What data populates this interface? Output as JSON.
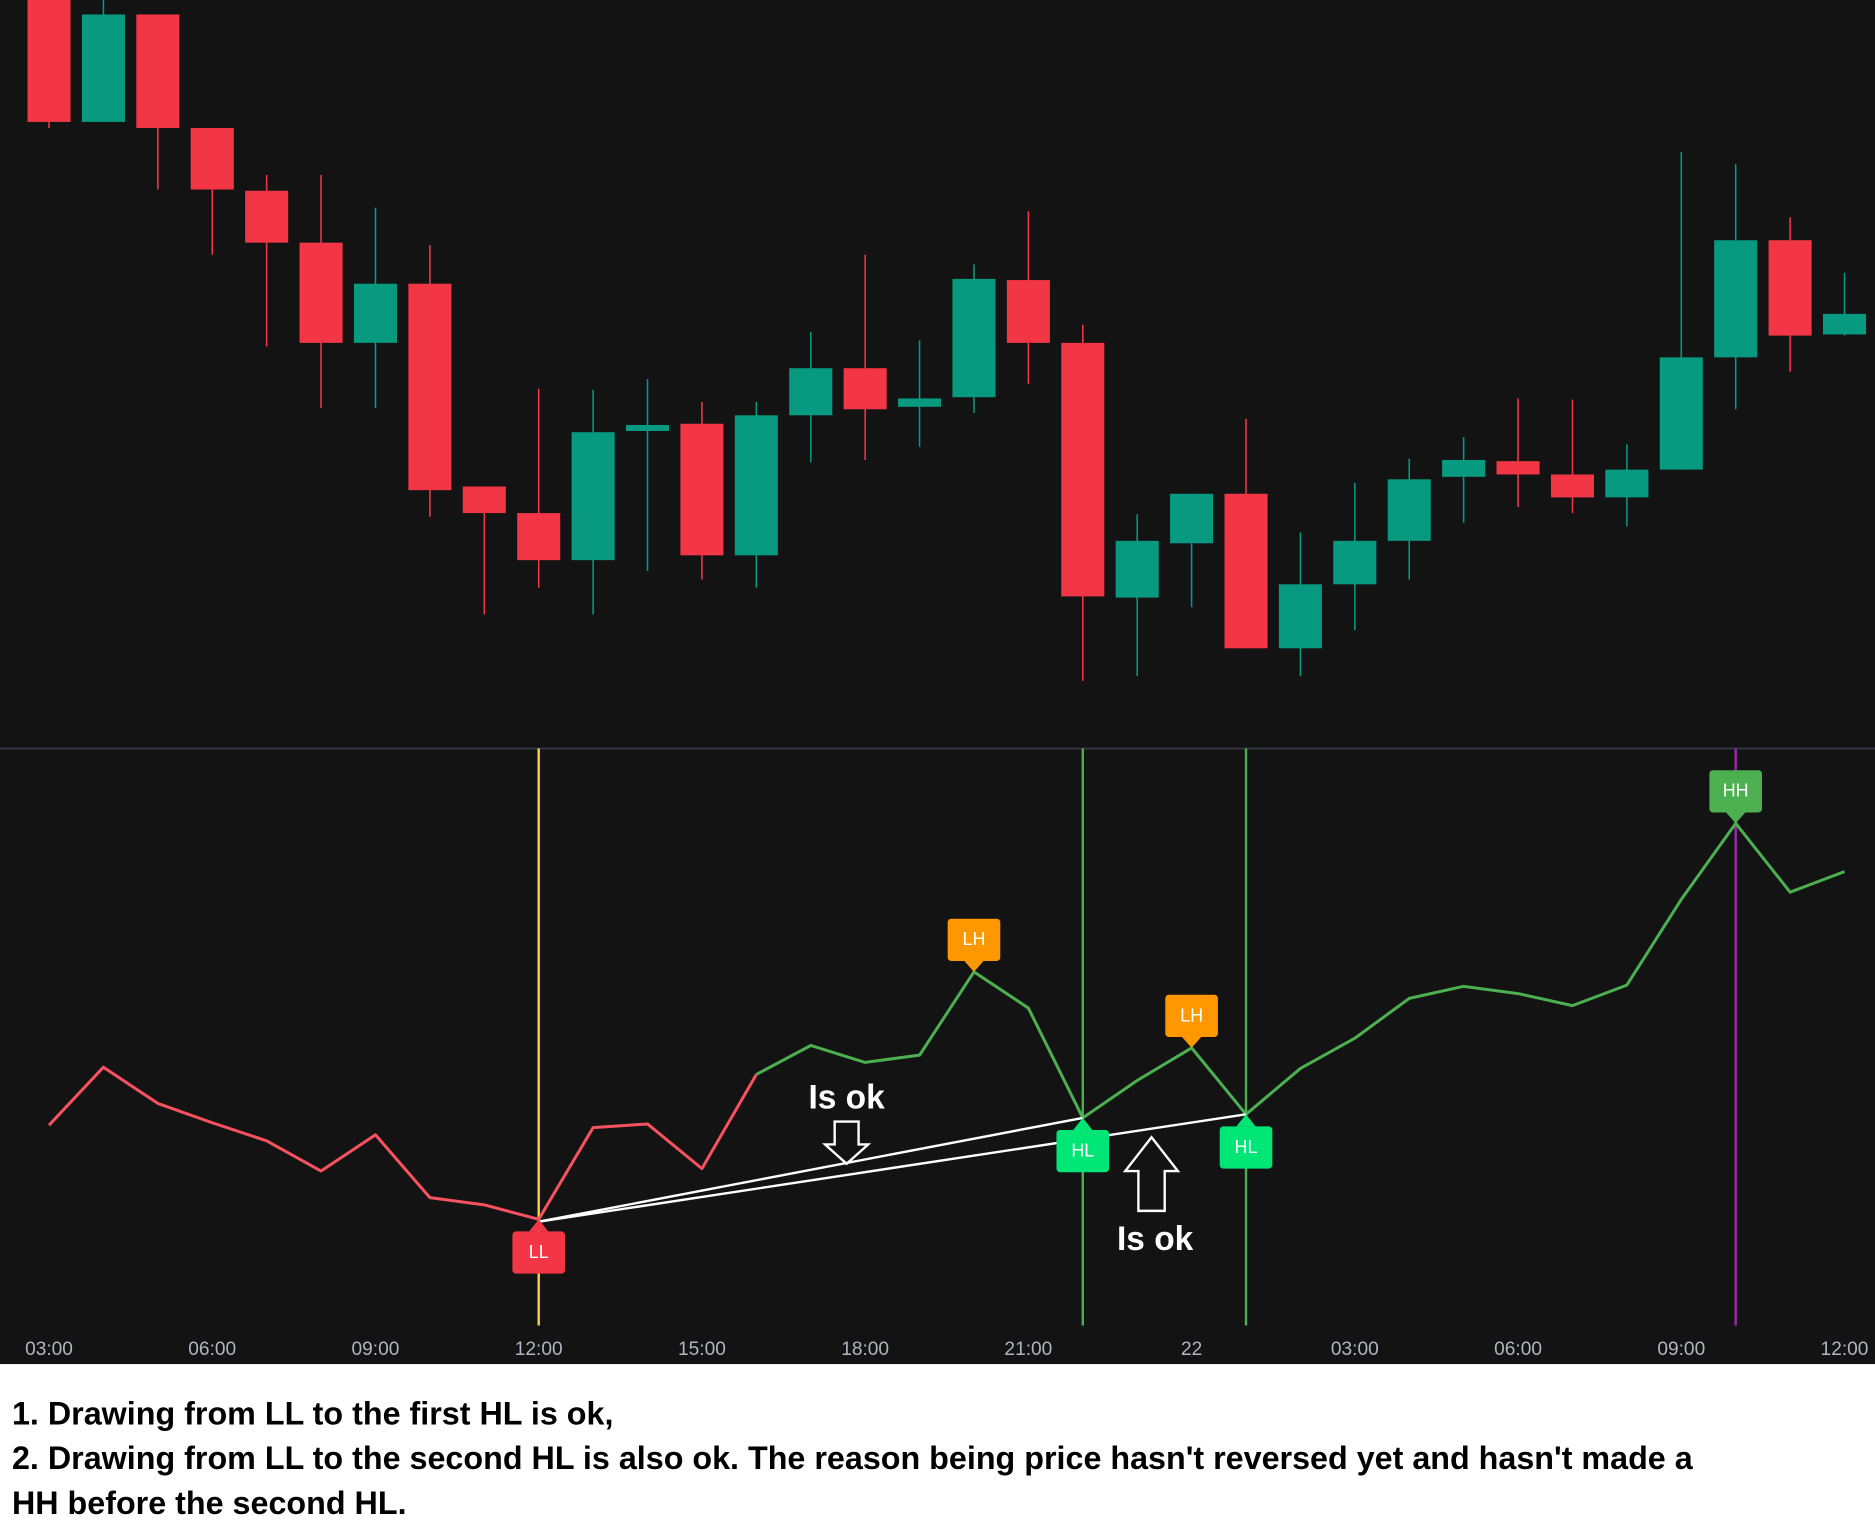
{
  "chart_data": [
    {
      "type": "candlestick",
      "up_color": "#089981",
      "down_color": "#f23645",
      "ylim": [
        0,
        620
      ],
      "open": [
        620,
        519,
        608,
        514,
        462,
        419,
        336,
        385,
        217,
        195,
        156,
        263,
        269,
        160,
        276,
        315,
        283,
        291,
        388,
        336,
        125,
        170,
        211,
        83,
        136,
        172,
        225,
        238,
        227,
        208,
        231,
        324,
        421,
        343
      ],
      "high": [
        620,
        620,
        608,
        514,
        475,
        475,
        448,
        417,
        217,
        298,
        297,
        306,
        287,
        287,
        345,
        409,
        338,
        401,
        445,
        351,
        194,
        211,
        273,
        179,
        220,
        240,
        258,
        290,
        289,
        252,
        494,
        484,
        440,
        394
      ],
      "low": [
        514,
        519,
        463,
        409,
        333,
        282,
        282,
        192,
        111,
        133,
        111,
        147,
        140,
        133,
        237,
        239,
        250,
        278,
        302,
        56,
        60,
        117,
        83,
        60,
        98,
        140,
        187,
        200,
        195,
        184,
        231,
        281,
        312,
        342
      ],
      "close": [
        519,
        608,
        514,
        463,
        419,
        336,
        385,
        214,
        195,
        156,
        262,
        268,
        160,
        276,
        315,
        281,
        290,
        389,
        336,
        126,
        172,
        211,
        83,
        136,
        172,
        223,
        239,
        227,
        208,
        231,
        324,
        421,
        342,
        360
      ]
    },
    {
      "type": "line",
      "ylim": [
        0,
        478
      ],
      "categories": [
        "03:00",
        null,
        null,
        "06:00",
        null,
        null,
        "09:00",
        null,
        null,
        "12:00",
        null,
        null,
        "15:00",
        null,
        null,
        "18:00",
        null,
        null,
        "21:00",
        null,
        null,
        "22",
        null,
        null,
        "03:00",
        null,
        null,
        "06:00",
        null,
        null,
        "09:00",
        null,
        null,
        "12:00"
      ],
      "series": [
        {
          "color": "#f7525f",
          "values": [
            166,
            214,
            184,
            168,
            153,
            128,
            158,
            106,
            100,
            88,
            164,
            167,
            130,
            208,
            null,
            null,
            null,
            null,
            null,
            null,
            null,
            null,
            null,
            null,
            null,
            null,
            null,
            null,
            null,
            null,
            null,
            null,
            null,
            null
          ]
        },
        {
          "color": "#4caf50",
          "values": [
            null,
            null,
            null,
            null,
            null,
            null,
            null,
            null,
            null,
            null,
            null,
            null,
            null,
            208,
            232,
            218,
            224,
            293,
            263,
            172,
            203,
            230,
            175,
            213,
            238,
            271,
            281,
            275,
            265,
            282,
            353,
            416,
            359,
            376
          ]
        }
      ],
      "vlines": [
        {
          "index": 9,
          "color": "#f5d547"
        },
        {
          "index": 19,
          "color": "#4caf50"
        },
        {
          "index": 22,
          "color": "#4caf50"
        },
        {
          "index": 31,
          "color": "#9c27b0"
        }
      ],
      "markers": [
        {
          "index": 9,
          "label": "LL",
          "color": "#f23645",
          "position": "below"
        },
        {
          "index": 17,
          "label": "LH",
          "color": "#ff9800",
          "position": "above"
        },
        {
          "index": 19,
          "label": "HL",
          "color": "#00e676",
          "position": "below"
        },
        {
          "index": 21,
          "label": "LH",
          "color": "#ff9800",
          "position": "above"
        },
        {
          "index": 22,
          "label": "HL",
          "color": "#00e676",
          "position": "below"
        },
        {
          "index": 31,
          "label": "HH",
          "color": "#4caf50",
          "position": "above"
        }
      ],
      "trend_lines": [
        {
          "from": 9,
          "to": 19
        },
        {
          "from": 9,
          "to": 22
        }
      ],
      "annotations": [
        "Is ok",
        "Is ok"
      ]
    }
  ],
  "caption": [
    "1. Drawing from LL to the first HL is ok,",
    "2. Drawing from LL to the second HL is also ok. The reason being price hasn't reversed yet and hasn't made a",
    "HH before the second HL."
  ]
}
